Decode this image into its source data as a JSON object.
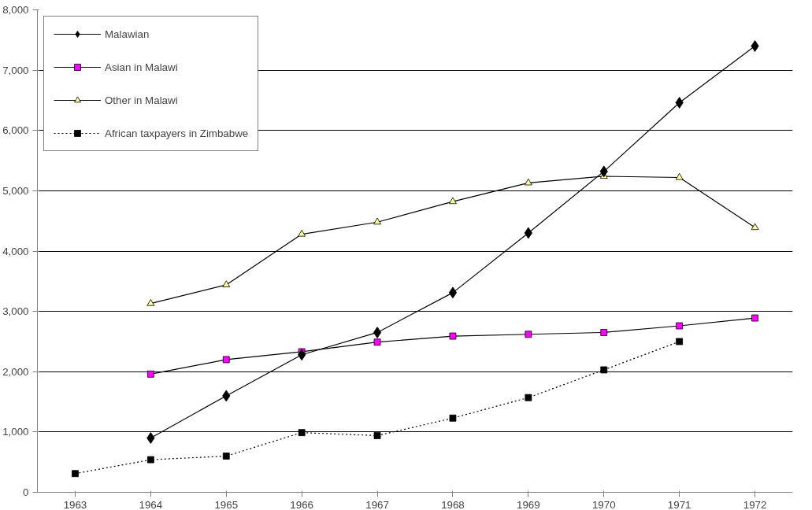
{
  "chart_data": {
    "type": "line",
    "categories": [
      "1963",
      "1964",
      "1965",
      "1966",
      "1967",
      "1968",
      "1969",
      "1970",
      "1971",
      "1972"
    ],
    "series": [
      {
        "name": "Malawian",
        "color": "#000000",
        "marker": "diamond",
        "line_style": "solid",
        "values": [
          null,
          900,
          1600,
          2280,
          2650,
          3310,
          4300,
          5320,
          6460,
          7400
        ]
      },
      {
        "name": "Asian in Malawi",
        "color": "#ff00ff",
        "marker": "square",
        "line_style": "solid",
        "values": [
          null,
          1960,
          2200,
          2330,
          2490,
          2590,
          2620,
          2650,
          2760,
          2890
        ]
      },
      {
        "name": "Other in Malawi",
        "color": "#ffff99",
        "marker": "triangle",
        "line_style": "solid",
        "values": [
          null,
          3130,
          3440,
          4280,
          4480,
          4820,
          5130,
          5240,
          5220,
          4390
        ]
      },
      {
        "name": "African taxpayers in Zimbabwe",
        "color": "#000000",
        "marker": "square",
        "line_style": "dotted",
        "values": [
          310,
          540,
          600,
          990,
          940,
          1230,
          1570,
          2030,
          2500,
          null
        ]
      }
    ],
    "ylim": [
      0,
      8000
    ],
    "yticks": [
      {
        "value": 0,
        "label": "0"
      },
      {
        "value": 1000,
        "label": "1,000"
      },
      {
        "value": 2000,
        "label": "2,000"
      },
      {
        "value": 3000,
        "label": "3,000"
      },
      {
        "value": 4000,
        "label": "4,000"
      },
      {
        "value": 5000,
        "label": "5,000"
      },
      {
        "value": 6000,
        "label": "6,000"
      },
      {
        "value": 7000,
        "label": "7,000"
      },
      {
        "value": 8000,
        "label": "8,000"
      }
    ],
    "grid": "y",
    "legend": "top left"
  }
}
